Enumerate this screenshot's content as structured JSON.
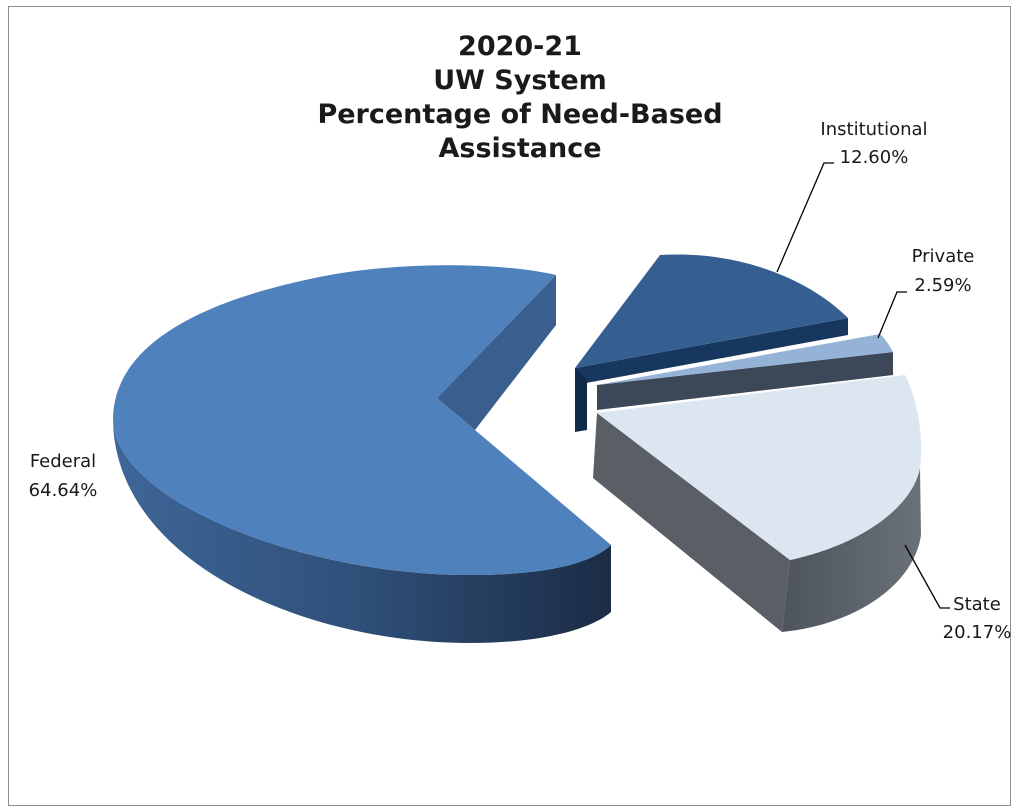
{
  "chart_data": {
    "type": "pie",
    "title_lines": [
      "2020-21",
      "UW System",
      "Percentage of Need-Based Assistance"
    ],
    "slices": [
      {
        "name": "Federal",
        "value": 64.64,
        "label": "64.64%",
        "color": "#4f81bd"
      },
      {
        "name": "Institutional",
        "value": 12.6,
        "label": "12.60%",
        "color": "#365f91"
      },
      {
        "name": "Private",
        "value": 2.59,
        "label": "2.59%",
        "color": "#95b3d7"
      },
      {
        "name": "State",
        "value": 20.17,
        "label": "20.17%",
        "color": "#dce6f1"
      }
    ],
    "legend": "none",
    "style": "3d-exploded"
  }
}
